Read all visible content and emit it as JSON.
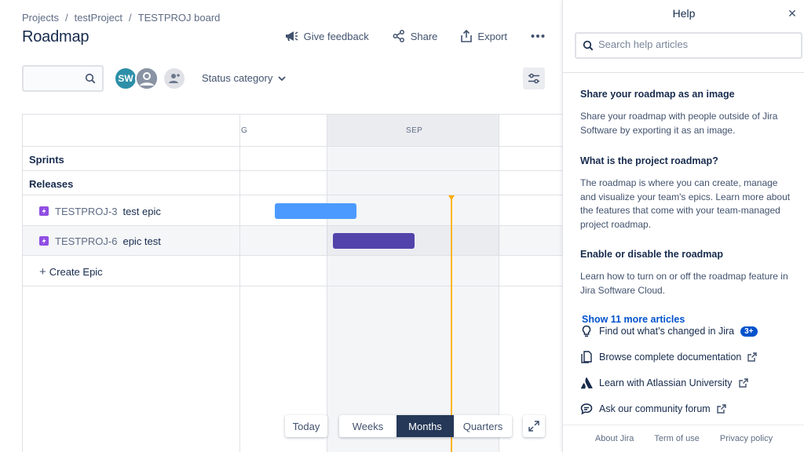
{
  "breadcrumb": {
    "items": [
      "Projects",
      "testProject",
      "TESTPROJ board"
    ],
    "separator": "/"
  },
  "page_title": "Roadmap",
  "top_actions": {
    "feedback": "Give feedback",
    "share": "Share",
    "export": "Export"
  },
  "filters": {
    "search_value": "",
    "avatar_initials": "SW",
    "status_category": "Status category"
  },
  "timeline": {
    "months": [
      "G",
      "SEP"
    ],
    "rows": {
      "sprints": "Sprints",
      "releases": "Releases"
    },
    "epics": [
      {
        "key": "TESTPROJ-3",
        "name": "test epic",
        "color": "#4c9aff"
      },
      {
        "key": "TESTPROJ-6",
        "name": "epic test",
        "color": "#5243aa"
      }
    ],
    "create_epic": "Create Epic",
    "today_color": "#ffab00"
  },
  "bottom_controls": {
    "today": "Today",
    "scales": [
      "Weeks",
      "Months",
      "Quarters"
    ],
    "selected_scale": "Months"
  },
  "help": {
    "title": "Help",
    "search_placeholder": "Search help articles",
    "articles": [
      {
        "title": "Share your roadmap as an image",
        "body": "Share your roadmap with people outside of Jira Software by exporting it as an image."
      },
      {
        "title": "What is the project roadmap?",
        "body": "The roadmap is where you can create, manage and visualize your team's epics. Learn more about the features that come with your team-managed project roadmap."
      },
      {
        "title": "Enable or disable the roadmap",
        "body": "Learn how to turn on or off the roadmap feature in Jira Software Cloud."
      }
    ],
    "show_more": "Show 11 more articles",
    "links": {
      "whats_changed": "Find out what’s changed in Jira",
      "whats_changed_badge": "3+",
      "documentation": "Browse complete documentation",
      "university": "Learn with Atlassian University",
      "community": "Ask our community forum"
    },
    "footer": [
      "About Jira",
      "Term of use",
      "Privacy policy"
    ]
  }
}
